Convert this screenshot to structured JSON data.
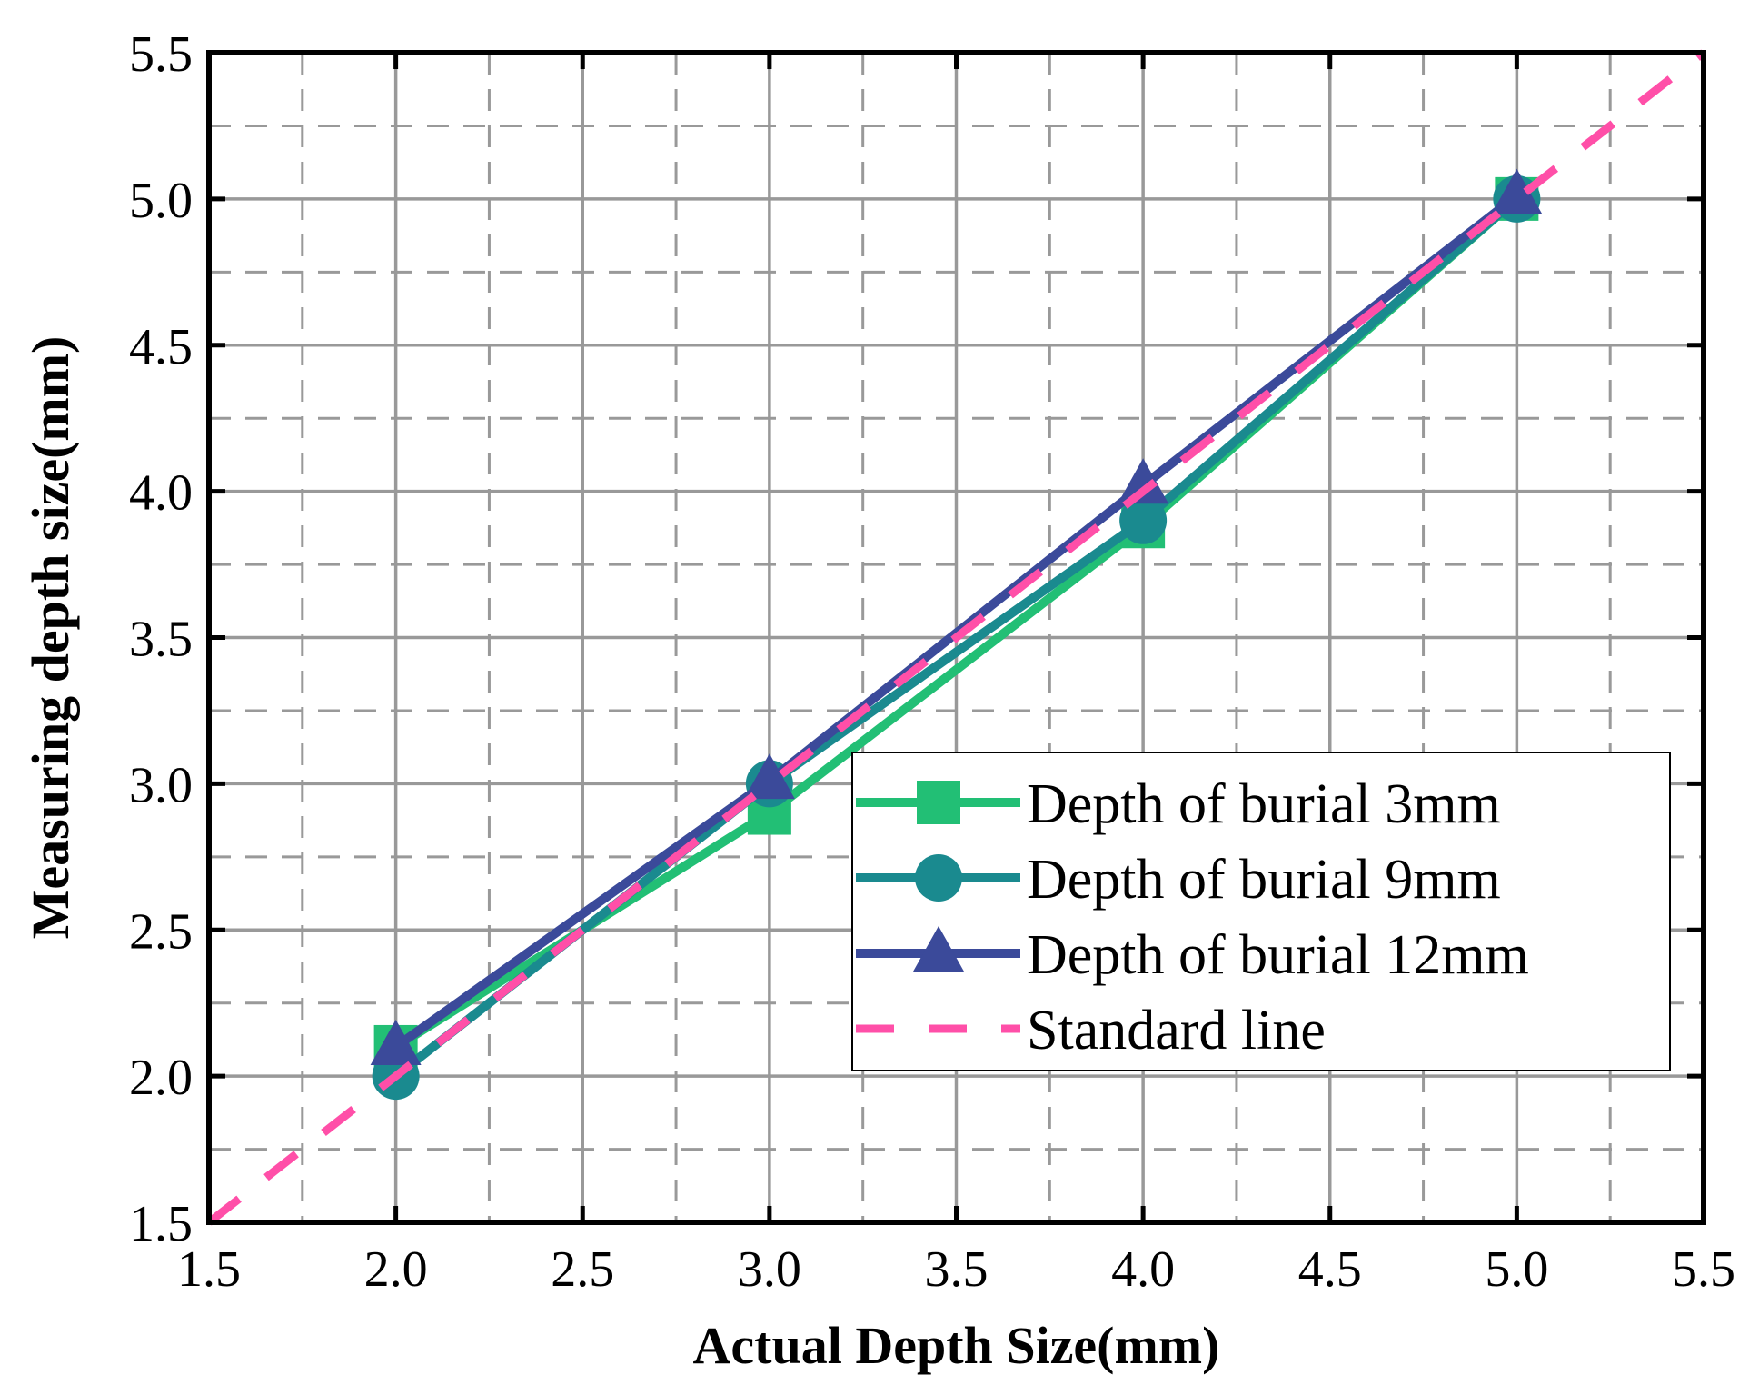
{
  "chart_data": {
    "type": "line",
    "xlabel": "Actual Depth Size(mm)",
    "ylabel": "Measuring depth size(mm)",
    "xlim": [
      1.5,
      5.5
    ],
    "ylim": [
      1.5,
      5.5
    ],
    "xticks": [
      "1.5",
      "2.0",
      "2.5",
      "3.0",
      "3.5",
      "4.0",
      "4.5",
      "5.0",
      "5.5"
    ],
    "yticks": [
      "1.5",
      "2.0",
      "2.5",
      "3.0",
      "3.5",
      "4.0",
      "4.5",
      "5.0",
      "5.5"
    ],
    "grid": "major solid, minor dashed",
    "legend_position": "lower-right",
    "x": [
      2.0,
      3.0,
      4.0,
      5.0
    ],
    "series": [
      {
        "name": "Depth of burial 3mm",
        "values": [
          2.1,
          2.9,
          3.88,
          5.0
        ],
        "color": "#22BF75",
        "marker": "square"
      },
      {
        "name": "Depth of burial 9mm",
        "values": [
          2.0,
          3.0,
          3.9,
          5.0
        ],
        "color": "#1A8A8F",
        "marker": "circle"
      },
      {
        "name": "Depth of burial 12mm",
        "values": [
          2.1,
          3.01,
          4.02,
          5.01
        ],
        "color": "#3B4A9A",
        "marker": "triangle"
      },
      {
        "name": "Standard line",
        "x": [
          1.5,
          5.5
        ],
        "values": [
          1.5,
          5.5
        ],
        "color": "#FF4FA8",
        "style": "dashed"
      }
    ]
  }
}
